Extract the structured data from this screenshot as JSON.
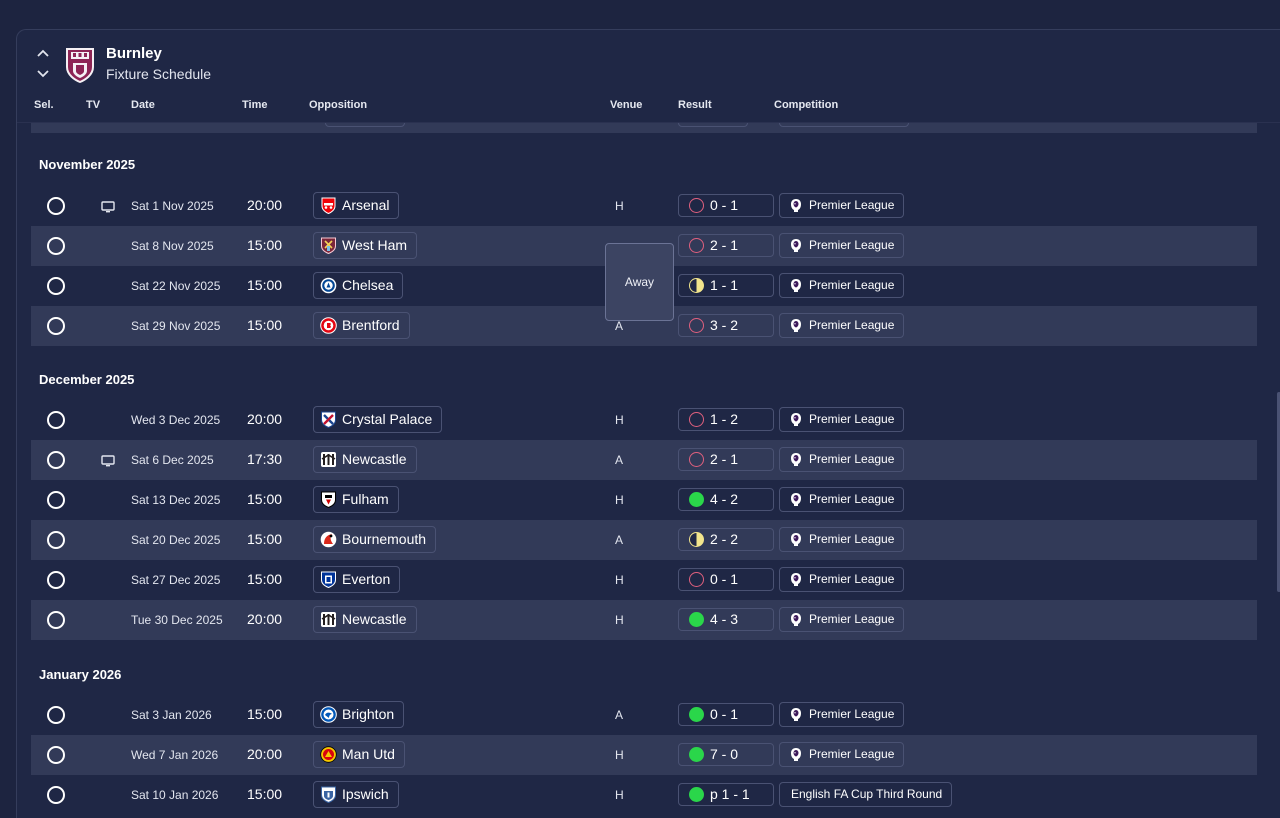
{
  "header": {
    "team_name": "Burnley",
    "page_title": "Fixture Schedule"
  },
  "columns": {
    "sel": "Sel.",
    "tv": "TV",
    "date": "Date",
    "time": "Time",
    "opposition": "Opposition",
    "venue": "Venue",
    "result": "Result",
    "competition": "Competition"
  },
  "months": [
    "November 2025",
    "December 2025",
    "January 2026"
  ],
  "fixtures": [
    {
      "tv": true,
      "date": "Sat 1 Nov 2025",
      "time": "20:00",
      "opposition": "Arsenal",
      "badge": "arsenal-badge",
      "venue": "H",
      "outcome": "loss",
      "score": "0 - 1",
      "competition": "Premier League"
    },
    {
      "tv": false,
      "date": "Sat 8 Nov 2025",
      "time": "15:00",
      "opposition": "West Ham",
      "badge": "west-ham-badge",
      "venue": "",
      "outcome": "loss",
      "score": "2 - 1",
      "competition": "Premier League"
    },
    {
      "tv": false,
      "date": "Sat 22 Nov 2025",
      "time": "15:00",
      "opposition": "Chelsea",
      "badge": "chelsea-badge",
      "venue": "",
      "outcome": "draw",
      "score": "1 - 1",
      "competition": "Premier League"
    },
    {
      "tv": false,
      "date": "Sat 29 Nov 2025",
      "time": "15:00",
      "opposition": "Brentford",
      "badge": "brentford-badge",
      "venue": "A",
      "outcome": "loss",
      "score": "3 - 2",
      "competition": "Premier League"
    },
    {
      "tv": false,
      "date": "Wed 3 Dec 2025",
      "time": "20:00",
      "opposition": "Crystal Palace",
      "badge": "crystal-palace-badge",
      "venue": "H",
      "outcome": "loss",
      "score": "1 - 2",
      "competition": "Premier League"
    },
    {
      "tv": true,
      "date": "Sat 6 Dec 2025",
      "time": "17:30",
      "opposition": "Newcastle",
      "badge": "newcastle-badge",
      "venue": "A",
      "outcome": "loss",
      "score": "2 - 1",
      "competition": "Premier League"
    },
    {
      "tv": false,
      "date": "Sat 13 Dec 2025",
      "time": "15:00",
      "opposition": "Fulham",
      "badge": "fulham-badge",
      "venue": "H",
      "outcome": "win",
      "score": "4 - 2",
      "competition": "Premier League"
    },
    {
      "tv": false,
      "date": "Sat 20 Dec 2025",
      "time": "15:00",
      "opposition": "Bournemouth",
      "badge": "bournemouth-badge",
      "venue": "A",
      "outcome": "draw",
      "score": "2 - 2",
      "competition": "Premier League"
    },
    {
      "tv": false,
      "date": "Sat 27 Dec 2025",
      "time": "15:00",
      "opposition": "Everton",
      "badge": "everton-badge",
      "venue": "H",
      "outcome": "loss",
      "score": "0 - 1",
      "competition": "Premier League"
    },
    {
      "tv": false,
      "date": "Tue 30 Dec 2025",
      "time": "20:00",
      "opposition": "Newcastle",
      "badge": "newcastle-badge",
      "venue": "H",
      "outcome": "win",
      "score": "4 - 3",
      "competition": "Premier League"
    },
    {
      "tv": false,
      "date": "Sat 3 Jan 2026",
      "time": "15:00",
      "opposition": "Brighton",
      "badge": "brighton-badge",
      "venue": "A",
      "outcome": "win",
      "score": "0 - 1",
      "competition": "Premier League"
    },
    {
      "tv": false,
      "date": "Wed 7 Jan 2026",
      "time": "20:00",
      "opposition": "Man Utd",
      "badge": "man-utd-badge",
      "venue": "H",
      "outcome": "win",
      "score": "7 - 0",
      "competition": "Premier League"
    },
    {
      "tv": false,
      "date": "Sat 10 Jan 2026",
      "time": "15:00",
      "opposition": "Ipswich",
      "badge": "ipswich-badge",
      "venue": "H",
      "outcome": "win",
      "score": "p 1 - 1",
      "competition": "English FA Cup Third Round"
    }
  ],
  "tooltip": {
    "text": "Away"
  },
  "colors": {
    "background": "#1d2440",
    "row_alt": "#323a58",
    "win": "#2ad64a",
    "loss": "#e0607e",
    "draw": "#f2e58c"
  }
}
